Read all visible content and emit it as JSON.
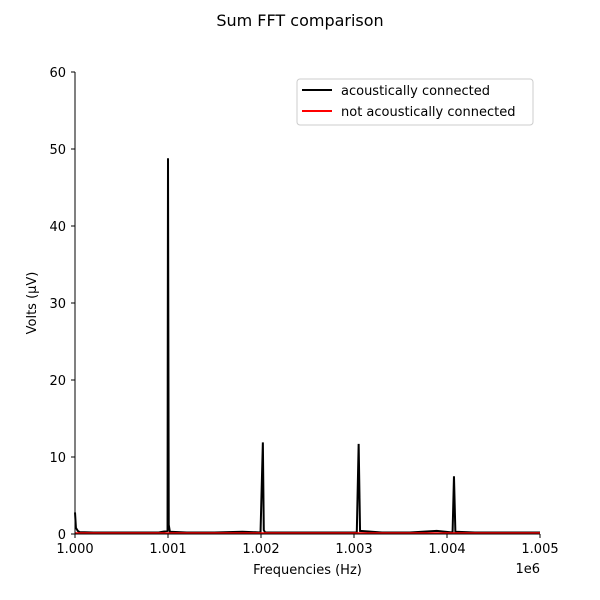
{
  "chart_data": {
    "type": "line",
    "title": "Sum FFT comparison",
    "xlabel": "Frequencies (Hz)",
    "ylabel": "Volts (μV)",
    "x_offset_label": "1e6",
    "xlim": [
      1000000,
      1005000
    ],
    "ylim": [
      0,
      60
    ],
    "x_ticks": [
      1000000,
      1001000,
      1002000,
      1003000,
      1004000,
      1005000
    ],
    "x_tick_labels": [
      "1.000",
      "1.001",
      "1.002",
      "1.003",
      "1.004",
      "1.005"
    ],
    "y_ticks": [
      0,
      10,
      20,
      30,
      40,
      50,
      60
    ],
    "y_tick_labels": [
      "0",
      "10",
      "20",
      "30",
      "40",
      "50",
      "60"
    ],
    "grid": false,
    "legend_position": "top-right",
    "series": [
      {
        "name": "acoustically connected",
        "color": "#000000",
        "x": [
          1000000,
          1000010,
          1000030,
          1000050,
          1000200,
          1000500,
          1000900,
          1000995,
          1001000,
          1001008,
          1001020,
          1001200,
          1001500,
          1001800,
          1001995,
          1002020,
          1002030,
          1002045,
          1002300,
          1002600,
          1002900,
          1003030,
          1003050,
          1003065,
          1003300,
          1003600,
          1003890,
          1004060,
          1004075,
          1004090,
          1004300,
          1004600,
          1004900,
          1005000
        ],
        "y": [
          2.8,
          0.8,
          0.4,
          0.25,
          0.2,
          0.2,
          0.2,
          0.4,
          48.8,
          1.2,
          0.3,
          0.2,
          0.2,
          0.3,
          0.2,
          11.9,
          0.5,
          0.2,
          0.2,
          0.2,
          0.2,
          0.2,
          11.7,
          0.4,
          0.2,
          0.2,
          0.4,
          0.2,
          7.5,
          0.3,
          0.2,
          0.2,
          0.2,
          0.2
        ]
      },
      {
        "name": "not acoustically connected",
        "color": "#ff0000",
        "x": [
          1000000,
          1005000
        ],
        "y": [
          0.1,
          0.1
        ]
      }
    ]
  }
}
